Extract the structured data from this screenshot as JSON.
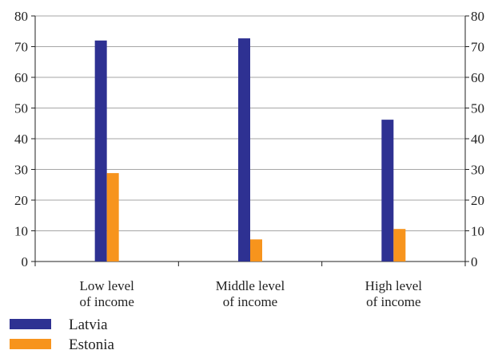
{
  "chart_data": {
    "type": "bar",
    "categories": [
      [
        "Low level",
        "of income"
      ],
      [
        "Middle level",
        "of income"
      ],
      [
        "High level",
        "of income"
      ]
    ],
    "series": [
      {
        "name": "Latvia",
        "values": [
          72,
          72.7,
          46.2
        ],
        "color": "#2e3192"
      },
      {
        "name": "Estonia",
        "values": [
          28.8,
          7.2,
          10.6
        ],
        "color": "#f7941d"
      }
    ],
    "ylim": [
      0,
      80
    ],
    "yticks": [
      0,
      10,
      20,
      30,
      40,
      50,
      60,
      70,
      80
    ],
    "grid": true,
    "legend_position": "bottom-left",
    "title": "",
    "xlabel": "",
    "ylabel": ""
  }
}
